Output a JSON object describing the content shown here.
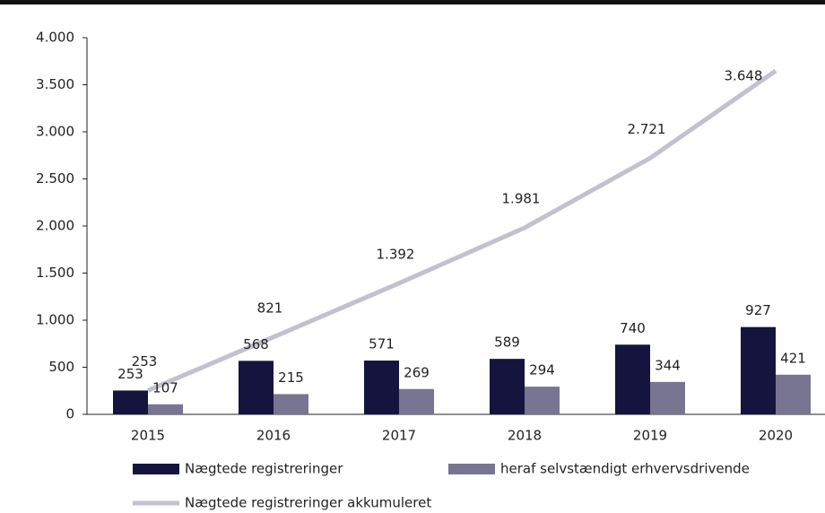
{
  "chart_data": {
    "type": "bar",
    "categories": [
      "2015",
      "2016",
      "2017",
      "2018",
      "2019",
      "2020"
    ],
    "series": [
      {
        "name": "Nægtede registreringer",
        "type": "bar",
        "color": "#15143f",
        "values": [
          253,
          568,
          571,
          589,
          740,
          927
        ]
      },
      {
        "name": "heraf selvstændigt erhvervsdrivende",
        "type": "bar",
        "color": "#777591",
        "values": [
          107,
          215,
          269,
          294,
          344,
          421
        ]
      },
      {
        "name": "Nægtede registreringer akkumuleret",
        "type": "line",
        "color": "#c2c1cd",
        "values": [
          253,
          821,
          1392,
          1981,
          2721,
          3648
        ],
        "value_labels": [
          "253",
          "821",
          "1.392",
          "1.981",
          "2.721",
          "3.648"
        ]
      }
    ],
    "ylim": [
      0,
      4000
    ],
    "yticks": [
      0,
      500,
      {
        "value": 1000,
        "label": "1.000"
      },
      {
        "value": 1500,
        "label": "1.500"
      },
      {
        "value": 2000,
        "label": "2.000"
      },
      {
        "value": 2500,
        "label": "2.500"
      },
      {
        "value": 3000,
        "label": "3.000"
      },
      {
        "value": 3500,
        "label": "3.500"
      },
      {
        "value": 4000,
        "label": "4.000"
      }
    ],
    "legend": "bottom"
  }
}
